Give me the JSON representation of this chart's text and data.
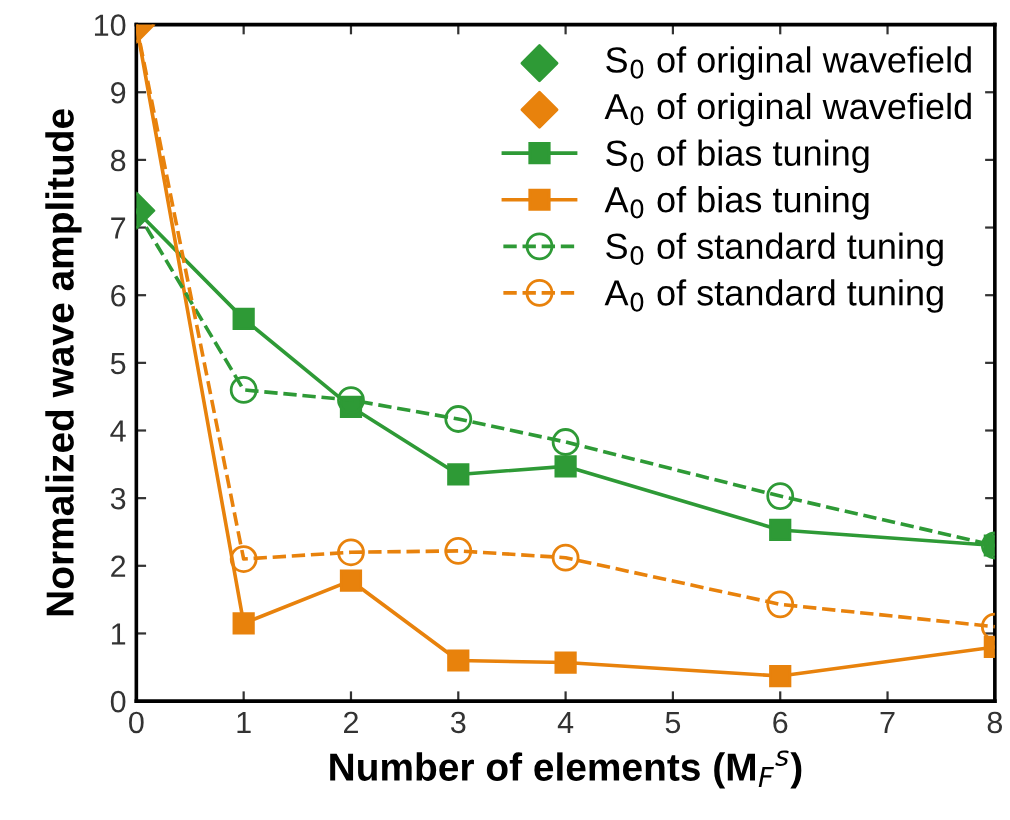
{
  "chart_data": {
    "type": "line",
    "xlabel": "Number of elements (M$_{F}$$^{s}$)",
    "ylabel": "Normalized wave amplitude",
    "xlim": [
      0,
      8
    ],
    "xticks": [
      0,
      1,
      2,
      3,
      4,
      5,
      6,
      7,
      8
    ],
    "ylim": [
      0,
      10
    ],
    "yticks": [
      0,
      1,
      2,
      3,
      4,
      5,
      6,
      7,
      8,
      9,
      10
    ],
    "grid": false,
    "legend": "top right",
    "series": [
      {
        "name": "S$_{0}$ of original wavefield",
        "type": "scatter",
        "marker": "diamond",
        "color": "#2e9a36",
        "x": [
          0
        ],
        "values": [
          7.25
        ]
      },
      {
        "name": "A$_{0}$ of original wavefield",
        "type": "scatter",
        "marker": "diamond",
        "color": "#e8820c",
        "x": [
          0
        ],
        "values": [
          10
        ]
      },
      {
        "name": "S$_{0}$ of bias tuning",
        "marker": "square",
        "line_style": "solid",
        "color": "#2e9a36",
        "x": [
          0,
          1,
          2,
          3,
          4,
          6,
          8
        ],
        "values": [
          7.25,
          5.65,
          4.35,
          3.35,
          3.47,
          2.53,
          2.3
        ]
      },
      {
        "name": "A$_{0}$ of bias tuning",
        "marker": "square",
        "line_style": "solid",
        "color": "#e8820c",
        "x": [
          0,
          1,
          2,
          3,
          4,
          6,
          8
        ],
        "values": [
          10,
          1.15,
          1.78,
          0.6,
          0.57,
          0.37,
          0.8
        ]
      },
      {
        "name": "S$_{0}$ of standard tuning",
        "marker": "circle",
        "line_style": "dashed",
        "color": "#2e9a36",
        "x": [
          0,
          1,
          2,
          3,
          4,
          6,
          8
        ],
        "values": [
          7.25,
          4.6,
          4.45,
          4.17,
          3.83,
          3.03,
          2.3
        ]
      },
      {
        "name": "A$_{0}$ of standard tuning",
        "marker": "circle",
        "line_style": "dashed",
        "color": "#e8820c",
        "x": [
          0,
          1,
          2,
          3,
          4,
          6,
          8
        ],
        "values": [
          10,
          2.1,
          2.2,
          2.22,
          2.12,
          1.43,
          1.1
        ]
      }
    ]
  }
}
